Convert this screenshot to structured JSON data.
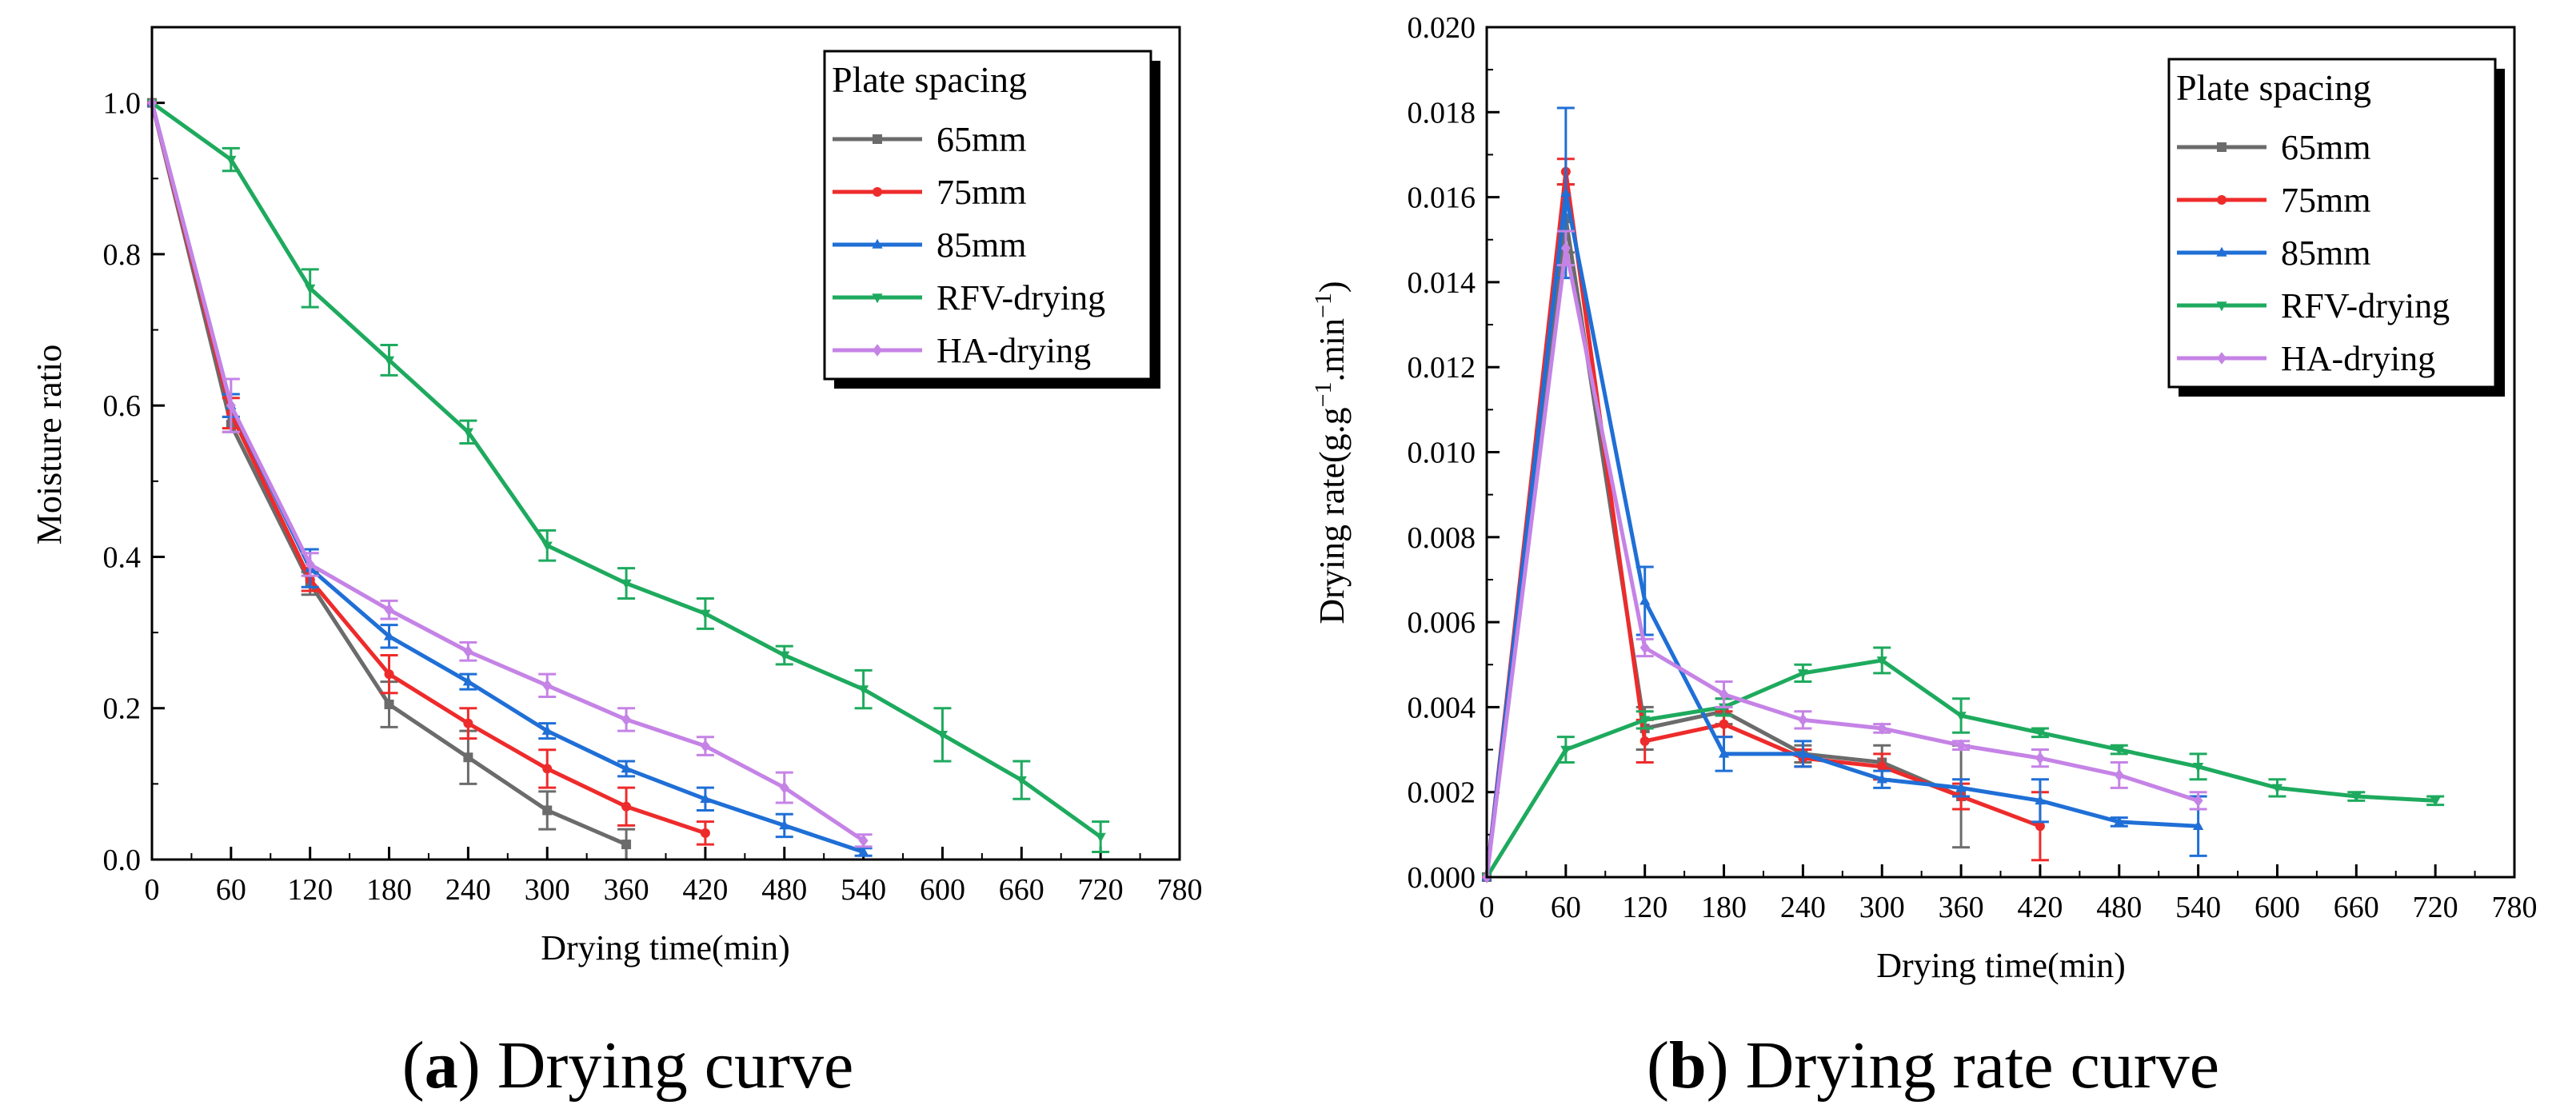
{
  "chart_data": [
    {
      "type": "line",
      "caption_letter": "a",
      "caption_text": "Drying curve",
      "xlabel": "Drying time(min)",
      "ylabel": "Moisture ratio",
      "xlim": [
        0,
        780
      ],
      "ylim": [
        0,
        1.1
      ],
      "xticks": [
        0,
        60,
        120,
        180,
        240,
        300,
        360,
        420,
        480,
        540,
        600,
        660,
        720,
        780
      ],
      "yticks": [
        0.0,
        0.2,
        0.4,
        0.6,
        0.8,
        1.0
      ],
      "ytick_decimals": 1,
      "legend_title": "Plate spacing",
      "legend_position": "top-right",
      "series": [
        {
          "name": "65mm",
          "color": "#6b6b6b",
          "marker": "square",
          "x": [
            0,
            60,
            120,
            180,
            240,
            300,
            360
          ],
          "y": [
            1.0,
            0.575,
            0.365,
            0.205,
            0.135,
            0.065,
            0.02
          ],
          "err": [
            0,
            0.01,
            0.015,
            0.03,
            0.035,
            0.025,
            0.02
          ]
        },
        {
          "name": "75mm",
          "color": "#ee2b2b",
          "marker": "circle",
          "x": [
            0,
            60,
            120,
            180,
            240,
            300,
            360,
            420
          ],
          "y": [
            1.0,
            0.59,
            0.37,
            0.245,
            0.18,
            0.12,
            0.07,
            0.035
          ],
          "err": [
            0,
            0.02,
            0.015,
            0.025,
            0.02,
            0.025,
            0.025,
            0.015
          ]
        },
        {
          "name": "85mm",
          "color": "#1f6fd6",
          "marker": "triangle-up",
          "x": [
            0,
            60,
            120,
            180,
            240,
            300,
            360,
            420,
            480,
            540
          ],
          "y": [
            1.0,
            0.6,
            0.385,
            0.295,
            0.235,
            0.17,
            0.12,
            0.08,
            0.045,
            0.01
          ],
          "err": [
            0,
            0.015,
            0.025,
            0.015,
            0.01,
            0.01,
            0.01,
            0.015,
            0.015,
            0.005
          ]
        },
        {
          "name": "RFV-drying",
          "color": "#1eaa5e",
          "marker": "triangle-down",
          "x": [
            0,
            60,
            120,
            180,
            240,
            300,
            360,
            420,
            480,
            540,
            600,
            660,
            720
          ],
          "y": [
            1.0,
            0.925,
            0.755,
            0.66,
            0.565,
            0.415,
            0.365,
            0.325,
            0.27,
            0.225,
            0.165,
            0.105,
            0.03
          ],
          "err": [
            0,
            0.015,
            0.025,
            0.02,
            0.015,
            0.02,
            0.02,
            0.02,
            0.012,
            0.025,
            0.035,
            0.025,
            0.02
          ]
        },
        {
          "name": "HA-drying",
          "color": "#c583e6",
          "marker": "diamond",
          "x": [
            0,
            60,
            120,
            180,
            240,
            300,
            360,
            420,
            480,
            540
          ],
          "y": [
            1.0,
            0.6,
            0.39,
            0.33,
            0.275,
            0.23,
            0.185,
            0.15,
            0.095,
            0.025
          ],
          "err": [
            0,
            0.035,
            0.015,
            0.012,
            0.012,
            0.015,
            0.015,
            0.012,
            0.02,
            0.008
          ]
        }
      ]
    },
    {
      "type": "line",
      "caption_letter": "b",
      "caption_text": "Drying rate curve",
      "xlabel": "Drying time(min)",
      "ylabel_main": "Drying rate(g.g",
      "ylabel_sup1": "−1",
      "ylabel_mid": ".min",
      "ylabel_sup2": "−1",
      "ylabel_end": ")",
      "xlim": [
        0,
        780
      ],
      "ylim": [
        0,
        0.02
      ],
      "xticks": [
        0,
        60,
        120,
        180,
        240,
        300,
        360,
        420,
        480,
        540,
        600,
        660,
        720,
        780
      ],
      "yticks": [
        0.0,
        0.002,
        0.004,
        0.006,
        0.008,
        0.01,
        0.012,
        0.014,
        0.016,
        0.018,
        0.02
      ],
      "ytick_decimals": 3,
      "legend_title": "Plate spacing",
      "legend_position": "top-right",
      "series": [
        {
          "name": "65mm",
          "color": "#6b6b6b",
          "marker": "square",
          "x": [
            0,
            60,
            120,
            180,
            240,
            300,
            360
          ],
          "y": [
            0.0,
            0.0155,
            0.0035,
            0.0039,
            0.0029,
            0.0027,
            0.0019
          ],
          "err": [
            0,
            0.0008,
            0.0005,
            0.0003,
            0.0002,
            0.0004,
            0.0012
          ]
        },
        {
          "name": "75mm",
          "color": "#ee2b2b",
          "marker": "circle",
          "x": [
            0,
            60,
            120,
            180,
            240,
            300,
            360,
            420
          ],
          "y": [
            0.0,
            0.0166,
            0.0032,
            0.0036,
            0.0028,
            0.0026,
            0.0019,
            0.0012
          ],
          "err": [
            0,
            0.0003,
            0.0005,
            0.0003,
            0.0002,
            0.0003,
            0.0003,
            0.0008
          ]
        },
        {
          "name": "85mm",
          "color": "#1f6fd6",
          "marker": "triangle-up",
          "x": [
            0,
            60,
            120,
            180,
            240,
            300,
            360,
            420,
            480,
            540
          ],
          "y": [
            0.0,
            0.0161,
            0.0065,
            0.0029,
            0.0029,
            0.0023,
            0.0021,
            0.0018,
            0.0013,
            0.0012
          ],
          "err": [
            0,
            0.002,
            0.0008,
            0.0004,
            0.0003,
            0.0002,
            0.0002,
            0.0005,
            0.0001,
            0.0007
          ]
        },
        {
          "name": "RFV-drying",
          "color": "#1eaa5e",
          "marker": "triangle-down",
          "x": [
            0,
            60,
            120,
            180,
            240,
            300,
            360,
            420,
            480,
            540,
            600,
            660,
            720
          ],
          "y": [
            0.0,
            0.003,
            0.0037,
            0.004,
            0.0048,
            0.0051,
            0.0038,
            0.0034,
            0.003,
            0.0026,
            0.0021,
            0.0019,
            0.0018
          ],
          "err": [
            0,
            0.0003,
            0.0002,
            0.0002,
            0.0002,
            0.0003,
            0.0004,
            0.0001,
            0.0001,
            0.0003,
            0.0002,
            0.0001,
            0.0001
          ]
        },
        {
          "name": "HA-drying",
          "color": "#c583e6",
          "marker": "diamond",
          "x": [
            0,
            60,
            120,
            180,
            240,
            300,
            360,
            420,
            480,
            540
          ],
          "y": [
            0.0,
            0.0148,
            0.0054,
            0.0043,
            0.0037,
            0.0035,
            0.0031,
            0.0028,
            0.0024,
            0.0018
          ],
          "err": [
            0,
            0.0004,
            0.0002,
            0.0003,
            0.0002,
            0.0001,
            0.0001,
            0.0002,
            0.0003,
            0.0002
          ]
        }
      ]
    }
  ]
}
